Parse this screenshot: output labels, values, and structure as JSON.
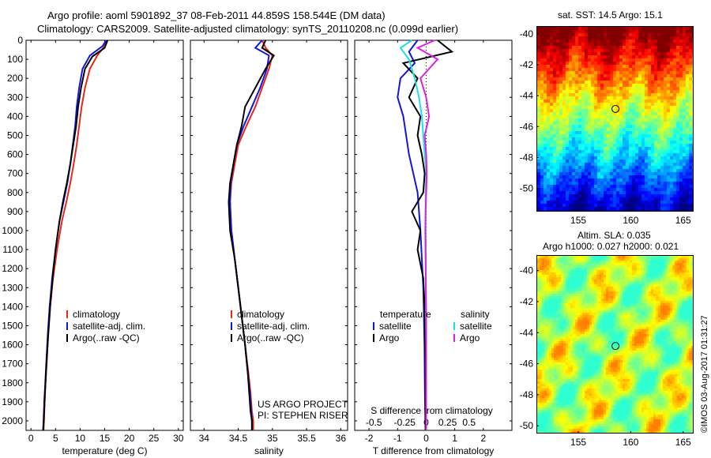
{
  "title_line1": "Argo profile: aoml 5901892_37 08-Feb-2011 44.859S 158.544E (DM data)",
  "title_line2": "Climatology: CARS2009. Satellite-adjusted climatology: synTS_20110208.nc (0.099d earlier)",
  "credit": "©IMOS 03-Aug-2017 01:31:27",
  "colors": {
    "climatology": "#e8261a",
    "satellite": "#1414e0",
    "argo": "#000000",
    "sal_satellite": "#22dede",
    "sal_argo": "#e020e0"
  },
  "chart_data": [
    {
      "id": "temperature",
      "type": "line",
      "xlabel": "temperature (deg C)",
      "xlim": [
        -1,
        31
      ],
      "xticks": [
        0,
        5,
        10,
        15,
        20,
        25,
        30
      ],
      "ylim": [
        0,
        2050
      ],
      "yticks": [
        0,
        100,
        200,
        300,
        400,
        500,
        600,
        700,
        800,
        900,
        1000,
        1100,
        1200,
        1300,
        1400,
        1500,
        1600,
        1700,
        1800,
        1900,
        2000
      ],
      "y_reversed": true,
      "legend": [
        "climatology",
        "satellite-adj. clim.",
        "Argo(..raw -QC)"
      ],
      "series": [
        {
          "name": "climatology",
          "color_key": "climatology",
          "x": [
            15.3,
            15.0,
            13.5,
            12.0,
            11.0,
            10.3,
            9.8,
            9.3,
            8.7,
            8.0,
            7.2,
            6.3,
            5.3,
            4.5,
            3.9,
            3.5,
            3.2,
            2.95,
            2.8,
            2.65,
            2.55
          ],
          "y": [
            0,
            30,
            80,
            150,
            250,
            350,
            450,
            550,
            650,
            750,
            850,
            950,
            1100,
            1250,
            1400,
            1550,
            1700,
            1800,
            1900,
            2000,
            2050
          ]
        },
        {
          "name": "satellite-adj. clim.",
          "color_key": "satellite",
          "x": [
            15.3,
            14.6,
            12.0,
            10.5,
            9.8,
            9.3,
            9.0,
            8.5,
            8.0,
            7.4,
            6.6,
            5.8,
            5.0,
            4.3,
            3.8,
            3.4,
            3.1,
            2.9,
            2.7,
            2.55,
            2.45
          ],
          "y": [
            0,
            30,
            80,
            150,
            250,
            350,
            450,
            550,
            650,
            750,
            850,
            950,
            1100,
            1250,
            1400,
            1550,
            1700,
            1800,
            1900,
            2000,
            2050
          ]
        },
        {
          "name": "Argo(..raw -QC)",
          "color_key": "argo",
          "x": [
            15.6,
            15.0,
            12.5,
            11.0,
            10.2,
            9.6,
            9.2,
            8.6,
            8.0,
            7.3,
            6.5,
            5.8,
            5.0,
            4.4,
            3.9,
            3.5,
            3.15,
            2.95,
            2.75,
            2.6,
            2.5
          ],
          "y": [
            0,
            40,
            85,
            150,
            250,
            350,
            450,
            550,
            650,
            750,
            850,
            950,
            1100,
            1250,
            1400,
            1550,
            1700,
            1800,
            1900,
            2000,
            2050
          ]
        }
      ]
    },
    {
      "id": "salinity",
      "type": "line",
      "xlabel": "salinity",
      "xlim": [
        33.8,
        36.1
      ],
      "xticks": [
        34,
        34.5,
        35,
        35.5,
        36
      ],
      "ylim": [
        0,
        2050
      ],
      "y_reversed": true,
      "legend": [
        "climatology",
        "satellite-adj. clim.",
        "Argo(..raw -QC)"
      ],
      "annotation": [
        "US ARGO PROJECT",
        "PI: STEPHEN RISER"
      ],
      "series": [
        {
          "name": "climatology",
          "color_key": "climatology",
          "x": [
            34.85,
            34.9,
            35.0,
            34.95,
            34.85,
            34.75,
            34.62,
            34.5,
            34.45,
            34.4,
            34.38,
            34.4,
            34.45,
            34.5,
            34.55,
            34.6,
            34.65,
            34.68,
            34.7,
            34.72,
            34.72
          ],
          "y": [
            0,
            40,
            80,
            150,
            250,
            350,
            450,
            550,
            650,
            750,
            850,
            1000,
            1150,
            1300,
            1450,
            1600,
            1750,
            1850,
            1950,
            2000,
            2050
          ]
        },
        {
          "name": "satellite-adj. clim.",
          "color_key": "satellite",
          "x": [
            34.85,
            34.75,
            34.95,
            34.92,
            34.82,
            34.7,
            34.58,
            34.48,
            34.43,
            34.39,
            34.38,
            34.4,
            34.45,
            34.5,
            34.55,
            34.6,
            34.64,
            34.67,
            34.69,
            34.7,
            34.7
          ],
          "y": [
            0,
            40,
            80,
            150,
            250,
            350,
            450,
            550,
            650,
            750,
            850,
            1000,
            1150,
            1300,
            1450,
            1600,
            1750,
            1850,
            1950,
            2000,
            2050
          ]
        },
        {
          "name": "Argo(..raw -QC)",
          "color_key": "argo",
          "x": [
            34.9,
            34.85,
            35.02,
            34.9,
            34.75,
            34.6,
            34.55,
            34.48,
            34.43,
            34.38,
            34.36,
            34.38,
            34.45,
            34.5,
            34.55,
            34.6,
            34.64,
            34.66,
            34.68,
            34.7,
            34.7
          ],
          "y": [
            0,
            40,
            80,
            150,
            250,
            350,
            450,
            550,
            650,
            750,
            850,
            1000,
            1150,
            1300,
            1450,
            1600,
            1750,
            1850,
            1950,
            2000,
            2050
          ]
        }
      ]
    },
    {
      "id": "differences",
      "type": "line",
      "xlabel": "T difference from climatology",
      "xlabel_top": "S difference from climatology",
      "xlim": [
        -2.5,
        3.0
      ],
      "xticks": [
        -2,
        -1,
        0,
        1,
        2
      ],
      "xticks_top": [
        "-0.5",
        "-0.25",
        "0",
        "0.25",
        "0.5"
      ],
      "ylim": [
        0,
        2050
      ],
      "y_reversed": true,
      "legend_temperature_title": "temperature",
      "legend_salinity_title": "salinity",
      "legend_temperature": [
        "satellite",
        "Argo"
      ],
      "legend_salinity": [
        "satellite",
        "Argo"
      ],
      "series": [
        {
          "name": "satellite",
          "group": "temperature",
          "color_key": "satellite",
          "x": [
            -0.3,
            -0.6,
            -0.4,
            -0.9,
            -1.0,
            -0.8,
            -0.7,
            -0.6,
            -0.45,
            -0.3,
            -0.25,
            -0.2,
            -0.15,
            -0.1,
            -0.08,
            -0.06,
            -0.05,
            -0.04,
            -0.03,
            -0.02
          ],
          "y": [
            0,
            60,
            120,
            200,
            300,
            400,
            500,
            600,
            700,
            800,
            900,
            1000,
            1150,
            1300,
            1450,
            1600,
            1750,
            1900,
            2000,
            2050
          ]
        },
        {
          "name": "Argo",
          "group": "temperature",
          "color_key": "argo",
          "x": [
            0.4,
            0.9,
            -0.8,
            -0.3,
            -0.6,
            -0.2,
            -0.3,
            -0.15,
            -0.05,
            -0.1,
            -0.5,
            -0.2,
            -0.3,
            -0.1,
            -0.05,
            -0.05,
            -0.03,
            -0.03,
            -0.02,
            -0.02
          ],
          "y": [
            0,
            60,
            120,
            200,
            300,
            400,
            500,
            600,
            700,
            800,
            900,
            1000,
            1100,
            1250,
            1400,
            1550,
            1700,
            1850,
            2000,
            2050
          ]
        },
        {
          "name": "satellite",
          "group": "salinity",
          "color_key": "sal_satellite",
          "x": [
            -0.5,
            -0.9,
            -0.6,
            -0.4,
            -0.25,
            -0.15,
            -0.1,
            -0.05,
            0.0,
            -0.02,
            -0.02,
            -0.02,
            -0.01,
            -0.01,
            -0.01,
            0.0,
            0.0,
            0.0,
            0.0,
            0.0
          ],
          "y": [
            0,
            40,
            100,
            200,
            300,
            400,
            500,
            600,
            700,
            800,
            900,
            1000,
            1150,
            1300,
            1450,
            1600,
            1750,
            1900,
            2000,
            2050
          ]
        },
        {
          "name": "Argo",
          "group": "salinity",
          "color_key": "sal_argo",
          "x": [
            0.3,
            -0.3,
            0.4,
            -0.2,
            0.0,
            0.1,
            -0.05,
            0.0,
            0.02,
            0.0,
            -0.02,
            -0.03,
            -0.02,
            -0.01,
            0.0,
            0.0,
            0.0,
            0.0,
            0.0,
            0.0
          ],
          "y": [
            0,
            40,
            100,
            200,
            300,
            400,
            500,
            600,
            700,
            800,
            900,
            1000,
            1150,
            1300,
            1450,
            1600,
            1750,
            1900,
            2000,
            2050
          ]
        }
      ]
    },
    {
      "id": "sst_map",
      "type": "heatmap",
      "title": "sat. SST: 14.5  Argo: 15.1",
      "xticks": [
        155,
        160,
        165
      ],
      "yticks": [
        -40,
        -42,
        -44,
        -46,
        -48,
        -50
      ],
      "xlim": [
        151,
        166
      ],
      "ylim": [
        -51.5,
        -39.5
      ],
      "marker": {
        "lon": 158.544,
        "lat": -44.859
      }
    },
    {
      "id": "sla_map",
      "type": "heatmap",
      "title_line1": "Altim. SLA: 0.035",
      "title_line2": "Argo h1000: 0.027  h2000: 0.021",
      "xticks": [
        155,
        160,
        165
      ],
      "yticks": [
        -40,
        -42,
        -44,
        -46,
        -48,
        -50
      ],
      "xlim": [
        151,
        166
      ],
      "ylim": [
        -50.5,
        -39
      ],
      "marker": {
        "lon": 158.544,
        "lat": -44.859
      }
    }
  ]
}
